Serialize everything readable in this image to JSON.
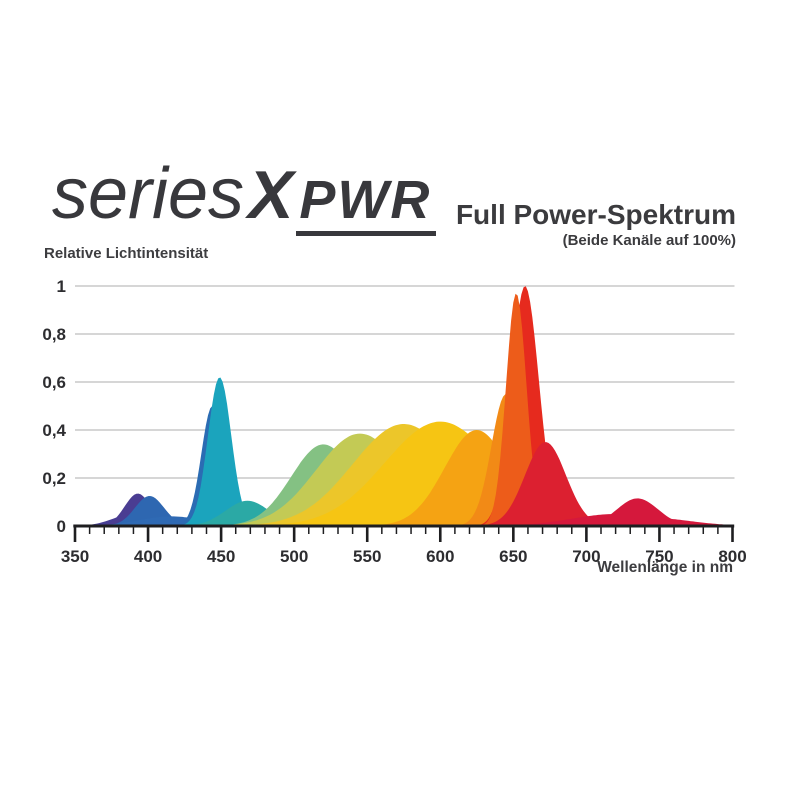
{
  "logo": {
    "series": "series",
    "x": "X",
    "pwr": "PWR"
  },
  "header": {
    "title": "Full Power-Spektrum",
    "subtitle": "(Beide Kanäle auf 100%)"
  },
  "colors": {
    "axis": "#1e1e20",
    "grid": "#c9c9c9",
    "text_dark": "#3d3d40",
    "tick_label": "#2d2d30"
  },
  "chart_data": {
    "type": "area",
    "title": "Full Power-Spektrum",
    "subtitle": "(Beide Kanäle auf 100%)",
    "xlabel": "Wellenlänge in nm",
    "ylabel": "Relative Lichtintensität",
    "xlim": [
      350,
      800
    ],
    "ylim": [
      0,
      1
    ],
    "x_major_ticks": [
      350,
      400,
      450,
      500,
      550,
      600,
      650,
      700,
      750,
      800
    ],
    "x_minor_tick_step": 10,
    "y_ticks": [
      {
        "v": 0,
        "label": "0"
      },
      {
        "v": 0.2,
        "label": "0,2"
      },
      {
        "v": 0.4,
        "label": "0,4"
      },
      {
        "v": 0.6,
        "label": "0,6"
      },
      {
        "v": 0.8,
        "label": "0,8"
      },
      {
        "v": 1,
        "label": "1"
      }
    ],
    "grid": "horizontal-only",
    "legend": "none",
    "envelope_points": [
      [
        350,
        0
      ],
      [
        370,
        0.02
      ],
      [
        380,
        0.05
      ],
      [
        393,
        0.14
      ],
      [
        400,
        0.12
      ],
      [
        415,
        0.05
      ],
      [
        430,
        0.09
      ],
      [
        440,
        0.35
      ],
      [
        449,
        0.62
      ],
      [
        460,
        0.24
      ],
      [
        475,
        0.09
      ],
      [
        490,
        0.13
      ],
      [
        500,
        0.23
      ],
      [
        510,
        0.31
      ],
      [
        530,
        0.36
      ],
      [
        550,
        0.39
      ],
      [
        570,
        0.41
      ],
      [
        590,
        0.43
      ],
      [
        605,
        0.43
      ],
      [
        620,
        0.4
      ],
      [
        630,
        0.39
      ],
      [
        640,
        0.5
      ],
      [
        650,
        0.85
      ],
      [
        658,
        1.0
      ],
      [
        665,
        0.78
      ],
      [
        675,
        0.4
      ],
      [
        685,
        0.18
      ],
      [
        700,
        0.07
      ],
      [
        710,
        0.05
      ],
      [
        722,
        0.08
      ],
      [
        735,
        0.12
      ],
      [
        750,
        0.07
      ],
      [
        770,
        0.03
      ],
      [
        785,
        0.01
      ],
      [
        800,
        0
      ]
    ],
    "spectrum_bands": [
      {
        "name": "uv-violet-base",
        "center": 390,
        "sigma": 14,
        "height": 0.05,
        "color": "#473e94"
      },
      {
        "name": "violet-395",
        "center": 393,
        "sigma": 9,
        "height": 0.135,
        "color": "#4a3d92"
      },
      {
        "name": "blue-400",
        "center": 401,
        "sigma": 10,
        "height": 0.125,
        "color": "#2e67b1"
      },
      {
        "name": "blue-base",
        "center": 416,
        "sigma": 22,
        "height": 0.04,
        "color": "#2f6ab4"
      },
      {
        "name": "royal-blue-445",
        "center": 444,
        "sigma": 7.5,
        "height": 0.5,
        "color": "#2b6cb3"
      },
      {
        "name": "teal-450",
        "center": 449,
        "sigma": 8,
        "height": 0.62,
        "color": "#1ba4bd"
      },
      {
        "name": "cyan-470",
        "center": 468,
        "sigma": 15,
        "height": 0.105,
        "color": "#2ba9a5"
      },
      {
        "name": "green-520",
        "center": 520,
        "sigma": 22,
        "height": 0.34,
        "color": "#84c183"
      },
      {
        "name": "yellow-green-545",
        "center": 545,
        "sigma": 30,
        "height": 0.385,
        "color": "#c3ca55"
      },
      {
        "name": "yellow-575",
        "center": 575,
        "sigma": 35,
        "height": 0.425,
        "color": "#ecc62a"
      },
      {
        "name": "gold-600",
        "center": 600,
        "sigma": 38,
        "height": 0.435,
        "color": "#f6c513"
      },
      {
        "name": "orange-625",
        "center": 625,
        "sigma": 22,
        "height": 0.4,
        "color": "#f5a313"
      },
      {
        "name": "deep-orange-645",
        "center": 645,
        "sigma": 10,
        "height": 0.55,
        "color": "#f28a16"
      },
      {
        "name": "red-658",
        "center": 658,
        "sigma": 9.5,
        "height": 1.0,
        "color": "#e62a1e"
      },
      {
        "name": "orange-red-652",
        "center": 652,
        "sigma": 7,
        "height": 0.97,
        "color": "#ed5c1a"
      },
      {
        "name": "crimson-672",
        "center": 672,
        "sigma": 14,
        "height": 0.35,
        "color": "#dc2030"
      },
      {
        "name": "far-red-base",
        "center": 720,
        "sigma": 30,
        "height": 0.05,
        "color": "#d5183c"
      },
      {
        "name": "far-red-735",
        "center": 735,
        "sigma": 14,
        "height": 0.115,
        "color": "#d5183c"
      },
      {
        "name": "far-red-tail",
        "center": 742,
        "sigma": 28,
        "height": 0.035,
        "color": "#d5183c"
      }
    ]
  }
}
